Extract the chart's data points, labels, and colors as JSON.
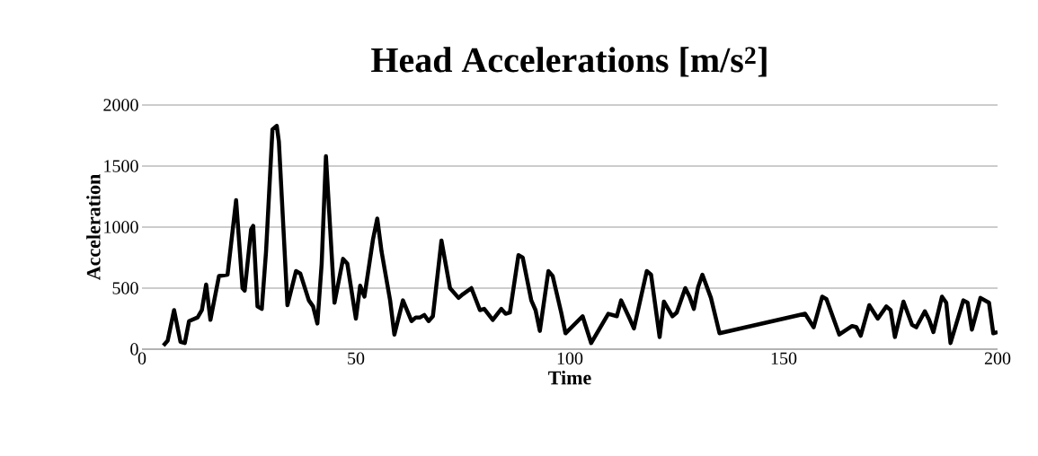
{
  "chart_data": {
    "type": "line",
    "title": "Head Accelerations [m/s$^{2}$]",
    "xlabel": "Time",
    "ylabel": "Acceleration",
    "xlim": [
      0,
      200
    ],
    "xticks": [
      0,
      50,
      100,
      150,
      200
    ],
    "ylim": [
      0,
      2000
    ],
    "yticks": [
      0,
      500,
      1000,
      1500,
      2000
    ],
    "grid": "y",
    "legend": false,
    "marker": "none",
    "line_style": "solid",
    "series": [
      {
        "color": "#000000",
        "x": [
          5,
          6,
          7.5,
          9,
          10,
          11,
          13,
          14,
          15,
          16,
          18,
          20,
          22,
          23.5,
          24,
          25.5,
          26,
          27,
          28,
          29,
          30.5,
          31.5,
          32,
          34,
          36,
          37,
          39,
          40,
          41,
          42,
          43,
          45,
          47,
          48,
          50,
          51,
          52,
          54,
          55,
          56,
          58,
          59,
          61,
          63,
          64,
          65,
          66,
          67,
          68,
          70,
          72,
          74,
          75,
          77,
          79,
          80,
          82,
          84,
          85,
          86,
          88,
          89,
          91,
          92,
          93,
          95,
          96,
          98,
          99,
          103,
          105,
          107,
          109,
          111,
          112,
          114,
          115,
          118,
          119,
          121,
          122,
          124,
          125,
          127,
          128,
          129,
          130,
          131,
          133,
          135,
          155,
          157,
          159,
          160,
          163,
          166,
          167,
          168,
          170,
          172,
          174,
          175,
          176,
          178,
          180,
          181,
          183,
          184,
          185,
          187,
          188,
          189,
          192,
          193,
          194,
          196,
          198,
          199,
          200
        ],
        "values": [
          30,
          70,
          320,
          60,
          50,
          230,
          260,
          320,
          530,
          240,
          600,
          610,
          1220,
          500,
          480,
          980,
          1010,
          350,
          330,
          800,
          1800,
          1830,
          1700,
          360,
          640,
          620,
          400,
          350,
          210,
          700,
          1580,
          380,
          740,
          700,
          250,
          520,
          430,
          900,
          1070,
          800,
          400,
          120,
          400,
          230,
          260,
          260,
          280,
          230,
          270,
          890,
          500,
          420,
          450,
          500,
          320,
          330,
          240,
          330,
          290,
          300,
          770,
          750,
          400,
          320,
          150,
          640,
          600,
          300,
          130,
          270,
          50,
          170,
          290,
          270,
          400,
          250,
          170,
          640,
          610,
          100,
          390,
          270,
          300,
          500,
          430,
          330,
          510,
          610,
          420,
          130,
          290,
          180,
          430,
          410,
          120,
          190,
          180,
          110,
          360,
          250,
          350,
          320,
          100,
          390,
          200,
          180,
          310,
          240,
          140,
          430,
          380,
          50,
          400,
          380,
          160,
          420,
          380,
          130,
          140
        ]
      }
    ]
  }
}
